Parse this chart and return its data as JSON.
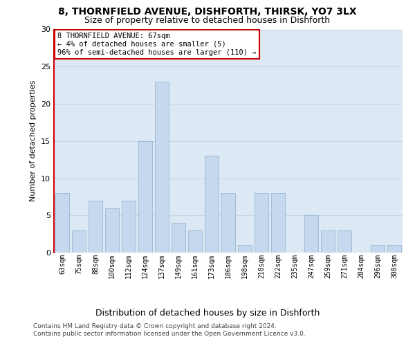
{
  "title1": "8, THORNFIELD AVENUE, DISHFORTH, THIRSK, YO7 3LX",
  "title2": "Size of property relative to detached houses in Dishforth",
  "xlabel": "Distribution of detached houses by size in Dishforth",
  "ylabel": "Number of detached properties",
  "categories": [
    "63sqm",
    "75sqm",
    "88sqm",
    "100sqm",
    "112sqm",
    "124sqm",
    "137sqm",
    "149sqm",
    "161sqm",
    "173sqm",
    "186sqm",
    "198sqm",
    "210sqm",
    "222sqm",
    "235sqm",
    "247sqm",
    "259sqm",
    "271sqm",
    "284sqm",
    "296sqm",
    "308sqm"
  ],
  "values": [
    8,
    3,
    7,
    6,
    7,
    15,
    23,
    4,
    3,
    13,
    8,
    1,
    8,
    8,
    0,
    5,
    3,
    3,
    0,
    1,
    1
  ],
  "bar_color": "#c5d8ed",
  "bar_edge_color": "#9ab8d4",
  "annotation_text": "8 THORNFIELD AVENUE: 67sqm\n← 4% of detached houses are smaller (5)\n96% of semi-detached houses are larger (110) →",
  "ylim_max": 30,
  "yticks": [
    0,
    5,
    10,
    15,
    20,
    25,
    30
  ],
  "grid_color": "#c8d4e4",
  "bg_color": "#dce8f4",
  "red_color": "#cc0000",
  "footer1": "Contains HM Land Registry data © Crown copyright and database right 2024.",
  "footer2": "Contains public sector information licensed under the Open Government Licence v3.0.",
  "title1_fontsize": 10,
  "title2_fontsize": 9,
  "ylabel_fontsize": 8,
  "xlabel_fontsize": 9,
  "tick_fontsize": 7,
  "footer_fontsize": 6.5
}
